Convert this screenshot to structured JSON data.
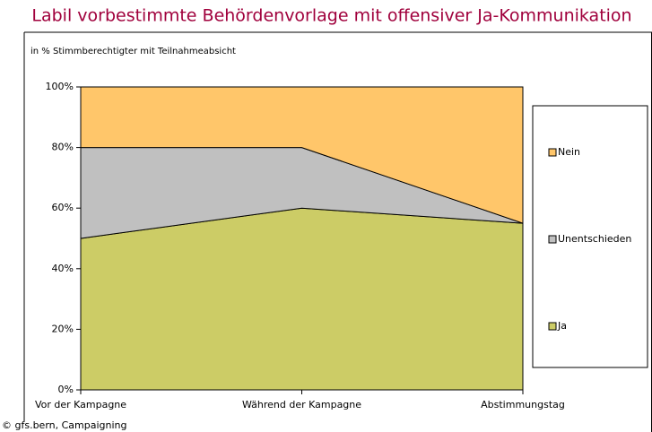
{
  "chart_data": {
    "type": "area",
    "title": "Labil vorbestimmte Behördenvorlage mit offensiver Ja-Kommunikation",
    "subtitle": "in %  Stimmberechtigter mit Teilnahmeabsicht",
    "footer": "© gfs.bern, Campaigning",
    "stacked": true,
    "categories": [
      "Vor der Kampagne",
      "Während der Kampagne",
      "Abstimmungstag"
    ],
    "series": [
      {
        "name": "Ja",
        "color": "#cccc66",
        "values": [
          50,
          60,
          55
        ]
      },
      {
        "name": "Unentschieden",
        "color": "#c0c0c0",
        "values": [
          30,
          20,
          0
        ]
      },
      {
        "name": "Nein",
        "color": "#ffc66a",
        "values": [
          20,
          20,
          45
        ]
      }
    ],
    "ylim": [
      0,
      100
    ],
    "yticks": [
      {
        "value": 0,
        "label": "0%"
      },
      {
        "value": 20,
        "label": "20%"
      },
      {
        "value": 40,
        "label": "40%"
      },
      {
        "value": 60,
        "label": "60%"
      },
      {
        "value": 80,
        "label": "80%"
      },
      {
        "value": 100,
        "label": "100%"
      }
    ]
  }
}
